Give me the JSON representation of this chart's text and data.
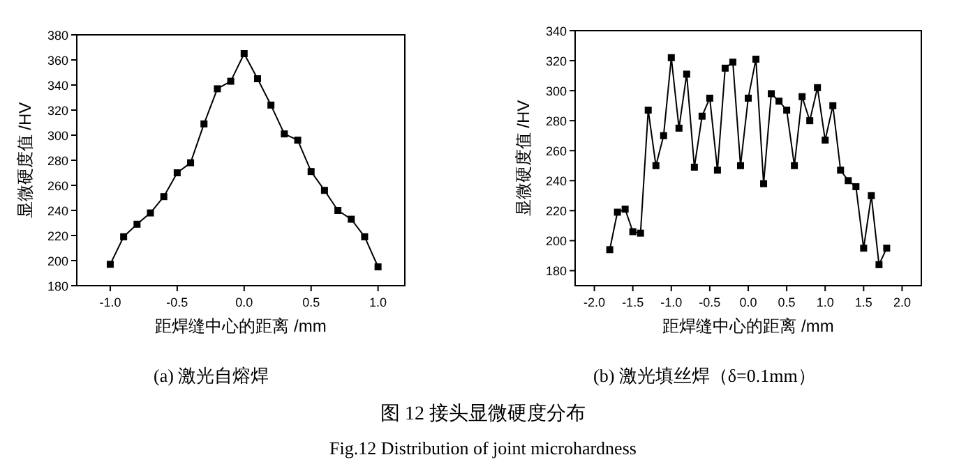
{
  "chart_data": [
    {
      "type": "line",
      "title": "(a)  激光自熔焊",
      "xlabel": "距焊缝中心的距离 /mm",
      "ylabel": "显微硬度值 /HV",
      "x": [
        -1.0,
        -0.9,
        -0.8,
        -0.7,
        -0.6,
        -0.5,
        -0.4,
        -0.3,
        -0.2,
        -0.1,
        0.0,
        0.1,
        0.2,
        0.3,
        0.4,
        0.5,
        0.6,
        0.7,
        0.8,
        0.9,
        1.0
      ],
      "series": [
        {
          "color": "#000000",
          "values": [
            197,
            219,
            229,
            238,
            251,
            270,
            278,
            309,
            337,
            343,
            365,
            345,
            324,
            301,
            296,
            271,
            256,
            240,
            233,
            219,
            195
          ]
        }
      ],
      "xlim": [
        -1.25,
        1.2
      ],
      "ylim": [
        180,
        380
      ],
      "xticks": [
        {
          "value": -1,
          "label": "-1.0"
        },
        -0.5,
        {
          "value": 0,
          "label": "0.0"
        },
        0.5,
        {
          "value": 1,
          "label": "1.0"
        }
      ],
      "yticks": [
        180,
        200,
        220,
        240,
        260,
        280,
        300,
        320,
        340,
        360,
        380
      ],
      "marker": "square",
      "line_style": "solid",
      "grid": false
    },
    {
      "type": "line",
      "title": "(b)  激光填丝焊（δ=0.1mm）",
      "xlabel": "距焊缝中心的距离 /mm",
      "ylabel": "显微硬度值 /HV",
      "x": [
        -1.8,
        -1.7,
        -1.6,
        -1.5,
        -1.4,
        -1.3,
        -1.2,
        -1.1,
        -1.0,
        -0.9,
        -0.8,
        -0.7,
        -0.6,
        -0.5,
        -0.4,
        -0.3,
        -0.2,
        -0.1,
        0.0,
        0.1,
        0.2,
        0.3,
        0.4,
        0.5,
        0.6,
        0.7,
        0.8,
        0.9,
        1.0,
        1.1,
        1.2,
        1.3,
        1.4,
        1.5,
        1.6,
        1.7,
        1.8
      ],
      "series": [
        {
          "color": "#000000",
          "values": [
            194,
            219,
            221,
            206,
            205,
            287,
            250,
            270,
            322,
            275,
            311,
            249,
            283,
            295,
            247,
            315,
            319,
            250,
            295,
            321,
            238,
            298,
            293,
            287,
            250,
            296,
            280,
            302,
            267,
            290,
            247,
            240,
            236,
            195,
            230,
            184,
            195
          ]
        }
      ],
      "xlim": [
        -2.25,
        2.25
      ],
      "ylim": [
        170,
        340
      ],
      "xticks": [
        {
          "value": -2,
          "label": "-2.0"
        },
        -1.5,
        {
          "value": -1,
          "label": "-1.0"
        },
        -0.5,
        {
          "value": 0,
          "label": "0.0"
        },
        0.5,
        {
          "value": 1,
          "label": "1.0"
        },
        1.5,
        {
          "value": 2,
          "label": "2.0"
        }
      ],
      "yticks": [
        180,
        200,
        220,
        240,
        260,
        280,
        300,
        320,
        340
      ],
      "marker": "square",
      "line_style": "solid",
      "grid": false,
      "annotations": [
        "图 12  接头显微硬度分布",
        "Fig.12 Distribution of joint microhardness"
      ]
    }
  ]
}
